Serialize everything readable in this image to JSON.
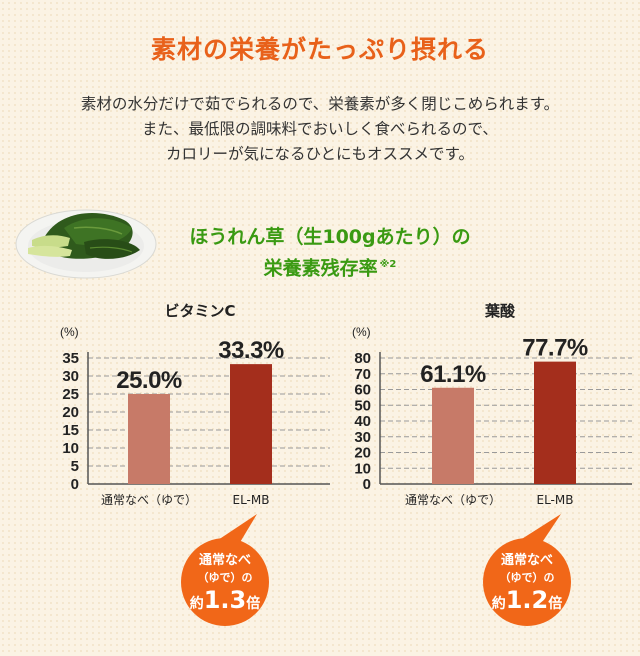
{
  "header": {
    "title": "素材の栄養がたっぷり摂れる",
    "description": [
      "素材の水分だけで茹でられるので、栄養素が多く閉じこめられます。",
      "また、最低限の調味料でおいしく食べられるので、",
      "カロリーが気になるひとにもオススメです。"
    ]
  },
  "subtitle": {
    "line1": "ほうれん草（生100gあたり）の",
    "line2": "栄養素残存率",
    "note": "※2"
  },
  "colors": {
    "title": "#e8611a",
    "subtitle": "#3a9a12",
    "bar_normal": "#c77a68",
    "bar_elmb": "#a42e1c",
    "bubble": "#f16718"
  },
  "chart_data": [
    {
      "type": "bar",
      "title": "ビタミンC",
      "unit": "(%)",
      "categories": [
        "通常なべ（ゆで）",
        "EL-MB"
      ],
      "values": [
        25.0,
        33.3
      ],
      "value_labels": [
        "25.0%",
        "33.3%"
      ],
      "ylim": [
        0,
        35
      ],
      "yticks": [
        0,
        5,
        10,
        15,
        20,
        25,
        30,
        35
      ],
      "grid": true,
      "callout": {
        "line1": "通常なべ",
        "line2": "（ゆで）の",
        "prefix": "約",
        "value": "1.3",
        "suffix": "倍"
      }
    },
    {
      "type": "bar",
      "title": "葉酸",
      "unit": "(%)",
      "categories": [
        "通常なべ（ゆで）",
        "EL-MB"
      ],
      "values": [
        61.1,
        77.7
      ],
      "value_labels": [
        "61.1%",
        "77.7%"
      ],
      "ylim": [
        0,
        80
      ],
      "yticks": [
        0,
        10,
        20,
        30,
        40,
        50,
        60,
        70,
        80
      ],
      "grid": true,
      "callout": {
        "line1": "通常なべ",
        "line2": "（ゆで）の",
        "prefix": "約",
        "value": "1.2",
        "suffix": "倍"
      }
    }
  ]
}
